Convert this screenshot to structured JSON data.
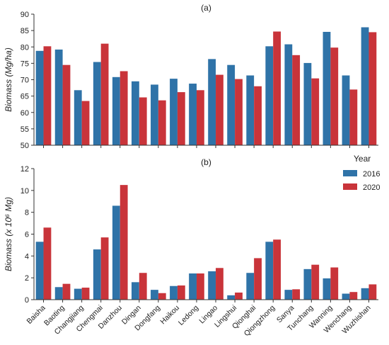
{
  "chart_data": [
    {
      "type": "bar",
      "panel_label": "(a)",
      "ylabel": "Biomass (Mg/ha)",
      "ylim": [
        50,
        90
      ],
      "yticks": [
        50,
        55,
        60,
        65,
        70,
        75,
        80,
        85,
        90
      ],
      "categories": [
        "Baisha",
        "Baoting",
        "Changjiang",
        "Chengmai",
        "Danzhou",
        "Dingan",
        "Dongfang",
        "Haikou",
        "Ledong",
        "Lingao",
        "Lingshui",
        "Qionghai",
        "Qiongzhong",
        "Sanya",
        "Tunchang",
        "Wanning",
        "Wenchang",
        "Wuzhishan"
      ],
      "series": [
        {
          "name": "2016",
          "values": [
            78.8,
            79.2,
            66.8,
            75.4,
            70.8,
            69.5,
            68.5,
            70.3,
            68.8,
            76.3,
            74.5,
            71.3,
            80.2,
            80.8,
            75.1,
            84.6,
            71.3,
            86.0
          ]
        },
        {
          "name": "2020",
          "values": [
            80.2,
            74.5,
            63.5,
            81.0,
            72.6,
            64.6,
            63.7,
            66.2,
            66.8,
            71.5,
            70.2,
            68.0,
            84.7,
            77.5,
            70.4,
            79.8,
            67.0,
            84.5
          ]
        }
      ]
    },
    {
      "type": "bar",
      "panel_label": "(b)",
      "ylabel": "Biomass (x 10⁶ Mg)",
      "ylim": [
        0,
        12
      ],
      "yticks": [
        0,
        2,
        4,
        6,
        8,
        10,
        12
      ],
      "categories": [
        "Baisha",
        "Baoting",
        "Changjiang",
        "Chengmai",
        "Danzhou",
        "Dingan",
        "Dongfang",
        "Haikou",
        "Ledong",
        "Lingao",
        "Lingshui",
        "Qionghai",
        "Qiongzhong",
        "Sanya",
        "Tunchang",
        "Wanning",
        "Wenchang",
        "Wuzhishan"
      ],
      "series": [
        {
          "name": "2016",
          "values": [
            5.3,
            1.15,
            1.0,
            4.6,
            8.6,
            1.6,
            0.9,
            1.25,
            2.4,
            2.6,
            0.4,
            2.45,
            5.3,
            0.9,
            2.8,
            1.95,
            0.55,
            1.05
          ]
        },
        {
          "name": "2020",
          "values": [
            6.6,
            1.45,
            1.1,
            5.7,
            10.5,
            2.45,
            0.6,
            1.3,
            2.4,
            2.9,
            0.65,
            3.8,
            5.5,
            0.95,
            3.2,
            2.95,
            0.7,
            1.4
          ]
        }
      ]
    }
  ],
  "legend": {
    "title": "Year",
    "placement": "right, between panels",
    "items": [
      {
        "label": "2016",
        "color": "#2f73a8"
      },
      {
        "label": "2020",
        "color": "#c9343a"
      }
    ]
  },
  "colors": {
    "2016": "#2f73a8",
    "2020": "#c9343a"
  }
}
